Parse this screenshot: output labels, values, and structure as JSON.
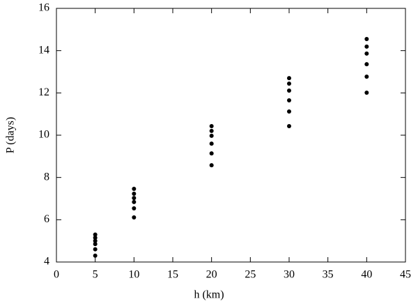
{
  "chart_data": {
    "type": "scatter",
    "xlabel": "h (km)",
    "ylabel": "P (days)",
    "series": [
      {
        "color": "#000000",
        "x": [
          5,
          5,
          5,
          5,
          5,
          5,
          10,
          10,
          10,
          10,
          10,
          10,
          20,
          20,
          20,
          20,
          20,
          20,
          30,
          30,
          30,
          30,
          30,
          30,
          40,
          40,
          40,
          40,
          40,
          40
        ],
        "values": [
          5.3,
          5.15,
          5.0,
          4.85,
          4.6,
          4.3,
          7.46,
          7.23,
          7.03,
          6.84,
          6.54,
          6.11,
          10.43,
          10.2,
          9.97,
          9.6,
          9.14,
          8.58,
          12.7,
          12.44,
          12.11,
          11.65,
          11.12,
          10.43,
          14.55,
          14.19,
          13.86,
          13.36,
          12.77,
          12.01
        ]
      }
    ],
    "xlim": [
      0,
      45
    ],
    "xticks": [
      0,
      5,
      10,
      15,
      20,
      25,
      30,
      35,
      40,
      45
    ],
    "ylim": [
      4,
      16
    ],
    "yticks": [
      4,
      6,
      8,
      10,
      12,
      14,
      16
    ]
  }
}
